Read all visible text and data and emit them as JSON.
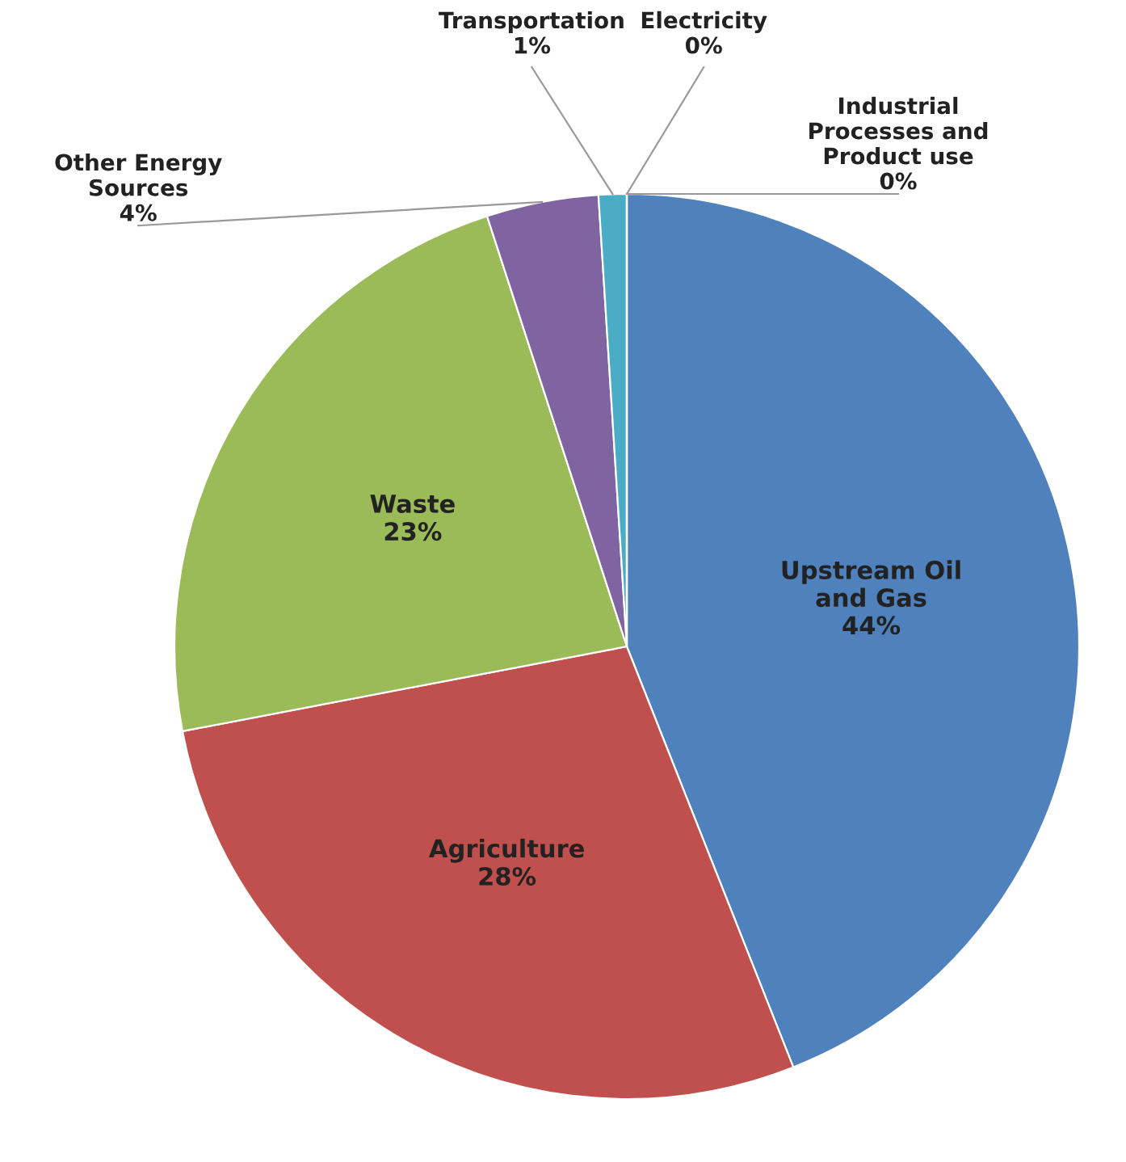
{
  "chart_data": {
    "type": "pie",
    "categories": [
      "Upstream Oil\nand Gas",
      "Agriculture",
      "Waste",
      "Other Energy\nSources",
      "Transportation",
      "Electricity",
      "Industrial\nProcesses and\nProduct use"
    ],
    "values": [
      44,
      28,
      23,
      4,
      1,
      0,
      0
    ],
    "value_labels": [
      "44%",
      "28%",
      "23%",
      "4%",
      "1%",
      "0%",
      "0%"
    ],
    "colors": [
      "#4f81bd",
      "#c0504d",
      "#9bbb59",
      "#8064a2",
      "#4bacc6",
      "#f79646",
      "#2c4d75"
    ],
    "legend": false
  }
}
